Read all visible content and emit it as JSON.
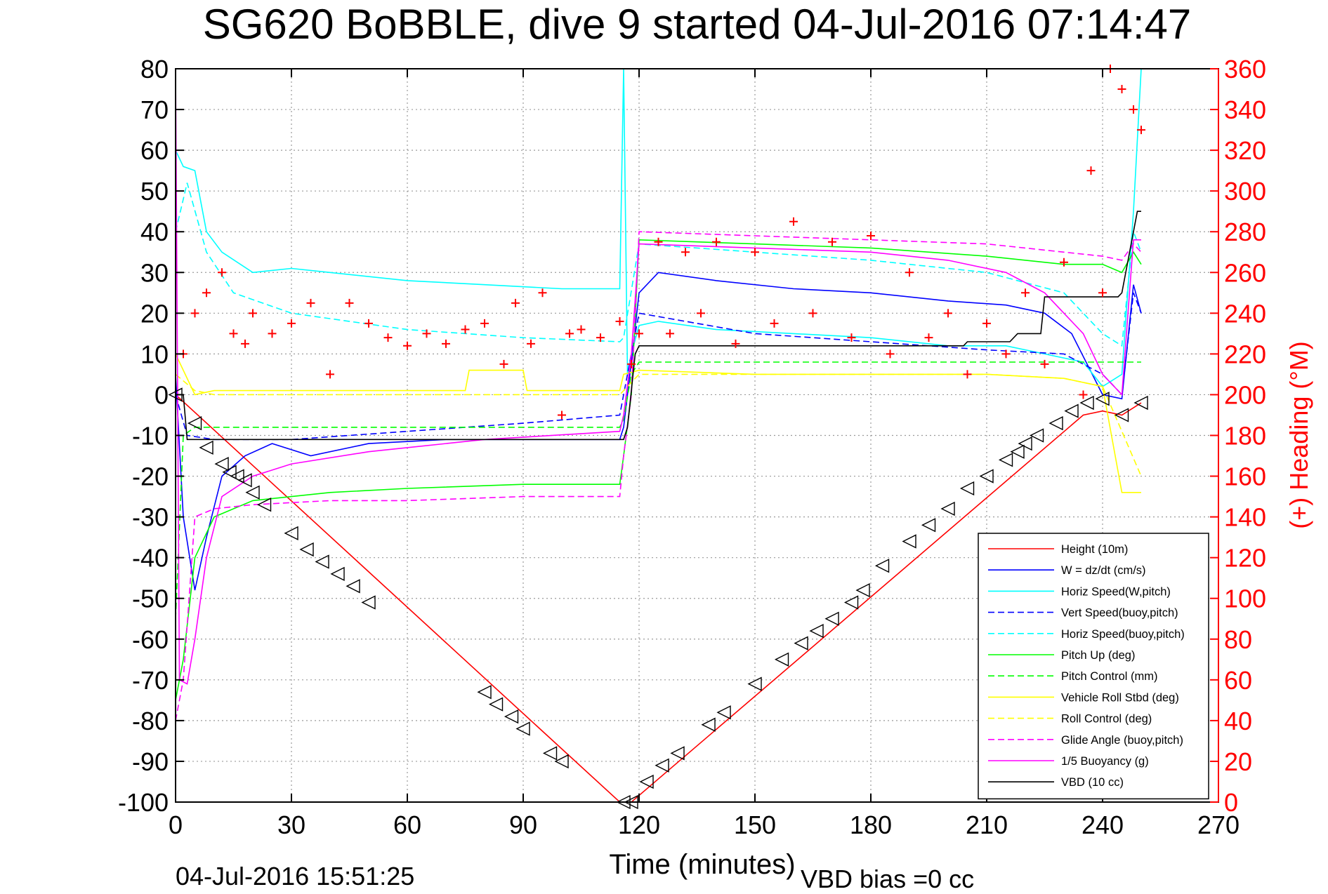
{
  "chart_data": {
    "type": "line",
    "title": "SG620 BoBBLE, dive 9 started 04-Jul-2016 07:14:47",
    "xlabel": "Time (minutes)",
    "ylabel_left": "",
    "ylabel_right": "(+) Heading (°M)",
    "xlim": [
      0,
      270
    ],
    "ylim_left": [
      -100,
      80
    ],
    "ylim_right": [
      0,
      360
    ],
    "x_ticks": [
      0,
      30,
      60,
      90,
      120,
      150,
      180,
      210,
      240,
      270
    ],
    "y_ticks_left": [
      80,
      70,
      60,
      50,
      40,
      30,
      20,
      10,
      0,
      -10,
      -20,
      -30,
      -40,
      -50,
      -60,
      -70,
      -80,
      -90,
      -100
    ],
    "y_ticks_right": [
      360,
      340,
      320,
      300,
      280,
      260,
      240,
      220,
      200,
      180,
      160,
      140,
      120,
      100,
      80,
      60,
      40,
      20,
      0
    ],
    "grid": true,
    "legend_position": "bottom-right",
    "colors": {
      "red": "#ff0000",
      "blue": "#0000ff",
      "cyan": "#00ffff",
      "green": "#00ff00",
      "yellow": "#ffff00",
      "magenta": "#ff00ff",
      "black": "#000000"
    },
    "series": [
      {
        "name": "Height (10m)",
        "color": "#ff0000",
        "style": "solid",
        "x": [
          0,
          115,
          118,
          235,
          240,
          245,
          250
        ],
        "y": [
          0,
          -100,
          -100,
          -5,
          -4,
          -5,
          -2
        ]
      },
      {
        "name": "W = dz/dt (cm/s)",
        "color": "#0000ff",
        "style": "solid",
        "x": [
          0,
          2,
          5,
          8,
          12,
          18,
          25,
          35,
          50,
          70,
          90,
          115,
          116,
          118,
          120,
          125,
          140,
          160,
          180,
          200,
          215,
          225,
          232,
          240,
          245,
          248,
          250
        ],
        "y": [
          5,
          -30,
          -48,
          -35,
          -20,
          -15,
          -12,
          -15,
          -12,
          -11,
          -11,
          -11,
          -8,
          8,
          25,
          30,
          28,
          26,
          25,
          23,
          22,
          20,
          15,
          0,
          -1,
          27,
          20
        ]
      },
      {
        "name": "Horiz Speed(W,pitch)",
        "color": "#00ffff",
        "style": "solid",
        "x": [
          0,
          2,
          5,
          8,
          12,
          20,
          30,
          40,
          60,
          80,
          100,
          115,
          116,
          117,
          118,
          120,
          125,
          140,
          160,
          180,
          200,
          215,
          225,
          235,
          240,
          245,
          248,
          250
        ],
        "y": [
          60,
          56,
          55,
          40,
          35,
          30,
          31,
          30,
          28,
          27,
          26,
          26,
          80,
          5,
          10,
          17,
          18,
          16,
          15,
          14,
          12,
          12,
          10,
          8,
          2,
          5,
          45,
          80
        ]
      },
      {
        "name": "Vert Speed(buoy,pitch)",
        "color": "#0000ff",
        "style": "dashed",
        "x": [
          0,
          3,
          10,
          30,
          60,
          90,
          115,
          116,
          120,
          150,
          180,
          210,
          230,
          240,
          245,
          248,
          250
        ],
        "y": [
          0,
          -10,
          -11,
          -11,
          -9,
          -7,
          -5,
          0,
          20,
          15,
          13,
          11,
          10,
          5,
          0,
          25,
          20
        ]
      },
      {
        "name": "Horiz Speed(buoy,pitch)",
        "color": "#00ffff",
        "style": "dashed",
        "x": [
          0,
          3,
          8,
          15,
          30,
          60,
          90,
          115,
          116,
          120,
          150,
          180,
          210,
          230,
          240,
          245,
          248,
          250
        ],
        "y": [
          40,
          52,
          35,
          25,
          20,
          16,
          14,
          13,
          14,
          37,
          35,
          33,
          30,
          25,
          15,
          12,
          40,
          35
        ]
      },
      {
        "name": "Pitch Up (deg)",
        "color": "#00ff00",
        "style": "solid",
        "x": [
          0,
          2,
          5,
          10,
          20,
          40,
          60,
          90,
          115,
          116,
          118,
          120,
          150,
          180,
          210,
          230,
          240,
          245,
          248,
          250
        ],
        "y": [
          -75,
          -65,
          -40,
          -30,
          -26,
          -24,
          -23,
          -22,
          -22,
          -15,
          0,
          38,
          37,
          36,
          34,
          32,
          32,
          30,
          35,
          32
        ]
      },
      {
        "name": "Pitch Control (mm)",
        "color": "#00ff00",
        "style": "dashed",
        "x": [
          0,
          2,
          5,
          115,
          116,
          118,
          120,
          250
        ],
        "y": [
          -55,
          -10,
          -8,
          -8,
          -6,
          5,
          8,
          8
        ]
      },
      {
        "name": "Vehicle Roll Stbd (deg)",
        "color": "#ffff00",
        "style": "solid",
        "x": [
          0,
          5,
          10,
          20,
          40,
          60,
          75,
          76,
          90,
          91,
          115,
          116,
          120,
          150,
          180,
          210,
          230,
          240,
          245,
          250
        ],
        "y": [
          10,
          0,
          1,
          1,
          1,
          1,
          1,
          6,
          6,
          1,
          1,
          5,
          6,
          5,
          5,
          5,
          4,
          2,
          -24,
          -24
        ]
      },
      {
        "name": "Roll Control (deg)",
        "color": "#ffff00",
        "style": "dashed",
        "x": [
          0,
          5,
          10,
          20,
          40,
          60,
          90,
          115,
          120,
          150,
          180,
          210,
          230,
          240,
          250
        ],
        "y": [
          5,
          1,
          0,
          0,
          0,
          0,
          0,
          0,
          5,
          5,
          5,
          5,
          4,
          2,
          -20
        ]
      },
      {
        "name": "Glide Angle (buoy,pitch)",
        "color": "#ff00ff",
        "style": "dashed",
        "x": [
          0,
          2,
          5,
          10,
          20,
          40,
          60,
          90,
          115,
          116,
          118,
          120,
          150,
          180,
          210,
          230,
          240,
          245,
          248,
          250
        ],
        "y": [
          -80,
          -70,
          -30,
          -28,
          -27,
          -26,
          -26,
          -25,
          -25,
          -15,
          0,
          40,
          39,
          38,
          37,
          35,
          34,
          33,
          37,
          35
        ]
      },
      {
        "name": "1/5 Buoyancy (g)",
        "color": "#ff00ff",
        "style": "solid",
        "x": [
          0,
          1,
          3,
          5,
          8,
          12,
          20,
          30,
          50,
          80,
          115,
          116,
          118,
          120,
          150,
          180,
          200,
          215,
          225,
          235,
          240,
          245,
          248,
          250
        ],
        "y": [
          80,
          -70,
          -71,
          -60,
          -40,
          -25,
          -20,
          -17,
          -14,
          -11,
          -9,
          -5,
          10,
          37,
          36,
          35,
          33,
          30,
          25,
          15,
          5,
          0,
          38,
          38
        ]
      },
      {
        "name": "VBD (10 cc)",
        "color": "#000000",
        "style": "solid",
        "x": [
          0,
          2,
          3,
          116,
          117,
          119,
          120,
          204,
          205,
          216,
          218,
          224,
          225,
          244,
          245,
          249,
          250
        ],
        "y": [
          0,
          0,
          -11,
          -11,
          -8,
          10,
          12,
          12,
          13,
          13,
          15,
          15,
          24,
          24,
          25,
          45,
          45
        ]
      }
    ],
    "heading": {
      "name": "(+) Heading (°M)",
      "color": "#ff0000",
      "marker": "+",
      "axis": "right",
      "x": [
        2,
        5,
        8,
        12,
        15,
        18,
        20,
        25,
        30,
        35,
        40,
        45,
        50,
        55,
        60,
        65,
        70,
        75,
        80,
        85,
        88,
        92,
        95,
        100,
        102,
        105,
        110,
        115,
        118,
        120,
        125,
        128,
        132,
        136,
        140,
        145,
        150,
        155,
        160,
        165,
        170,
        175,
        180,
        185,
        190,
        195,
        200,
        205,
        210,
        215,
        220,
        225,
        230,
        235,
        237,
        240,
        242,
        245,
        248,
        250
      ],
      "y": [
        220,
        240,
        250,
        260,
        230,
        225,
        240,
        230,
        235,
        245,
        210,
        245,
        235,
        228,
        224,
        230,
        225,
        232,
        235,
        215,
        245,
        225,
        250,
        190,
        230,
        232,
        228,
        236,
        215,
        230,
        275,
        230,
        270,
        240,
        275,
        225,
        270,
        235,
        285,
        240,
        275,
        228,
        278,
        220,
        260,
        228,
        240,
        210,
        235,
        220,
        250,
        215,
        265,
        200,
        310,
        250,
        360,
        350,
        340,
        330
      ]
    },
    "height_markers": {
      "series": "Height (10m)",
      "marker": "triangle",
      "color": "#000000",
      "x": [
        0,
        5,
        8,
        12,
        14,
        16,
        18,
        20,
        23,
        30,
        34,
        38,
        42,
        46,
        50,
        80,
        83,
        87,
        90,
        97,
        100,
        116,
        118,
        122,
        126,
        130,
        138,
        142,
        150,
        157,
        162,
        166,
        170,
        175,
        178,
        183,
        190,
        195,
        200,
        205,
        210,
        215,
        218,
        220,
        223,
        228,
        232,
        236,
        240,
        245,
        250
      ],
      "y": [
        0,
        -7,
        -13,
        -17,
        -19,
        -20,
        -21,
        -24,
        -27,
        -34,
        -38,
        -41,
        -44,
        -47,
        -51,
        -73,
        -76,
        -79,
        -82,
        -88,
        -90,
        -100,
        -100,
        -95,
        -91,
        -88,
        -81,
        -78,
        -71,
        -65,
        -61,
        -58,
        -55,
        -51,
        -48,
        -42,
        -36,
        -32,
        -28,
        -23,
        -20,
        -16,
        -14,
        -12,
        -10,
        -7,
        -4,
        -2,
        -1,
        -5,
        -2
      ]
    }
  },
  "footer": {
    "timestamp": "04-Jul-2016 15:51:25",
    "vbd_bias": "VBD bias =0 cc"
  }
}
